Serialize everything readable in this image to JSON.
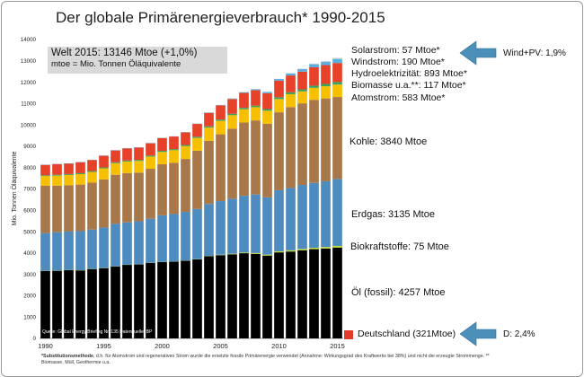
{
  "title": "Der globale Primärenergieverbrauch* 1990-2015",
  "ylabel": "Mio. Tonnen Öläquivalente",
  "summary_box": {
    "line1": "Welt 2015: 13146 Mtoe (+1,0%)",
    "line2": "mtoe = Mio. Tonnen Öläquivalente"
  },
  "source_label": "Quelle: Global Energy Briefing Nr. 135 Datenquelle: BP",
  "footnote": {
    "bold": "*Substitutionsmethode",
    "text": ", d.h. für Atomstrom und regenerativen Strom wurde die ersetzte fossile Primärenergie verwendet (Annahme: Wirkungsgrad des Kraftwerks bei 38%) und nicht die erzeugte Strommenge. ** Biomasse, Müll, Geothermie u.a."
  },
  "annotations": {
    "wind_pv": "Wind+PV: 1,9%",
    "germany_share": "D: 2,4%"
  },
  "colors": {
    "oel": "#000000",
    "biokraft": "#c4dc3a",
    "erdgas": "#4e8cc0",
    "kohle": "#a9784a",
    "atom": "#f6c000",
    "biomasse": "#3ba25a",
    "hydro": "#e8412a",
    "wind": "#58b0e0",
    "solar": "#d7d7d7",
    "deutschland": "#e33b2b",
    "arrow": "#4a90b8"
  },
  "chart_data": {
    "type": "bar",
    "stacked": true,
    "title": "Der globale Primärenergieverbrauch* 1990-2015",
    "ylabel": "Mio. Tonnen Öläquivalente",
    "ylim": [
      0,
      14000
    ],
    "yticks": [
      0,
      1000,
      2000,
      3000,
      4000,
      5000,
      6000,
      7000,
      8000,
      9000,
      10000,
      11000,
      12000,
      13000,
      14000
    ],
    "categories": [
      1990,
      1991,
      1992,
      1993,
      1994,
      1995,
      1996,
      1997,
      1998,
      1999,
      2000,
      2001,
      2002,
      2003,
      2004,
      2005,
      2006,
      2007,
      2008,
      2009,
      2010,
      2011,
      2012,
      2013,
      2014,
      2015
    ],
    "xtick_labels": [
      "1990",
      "1995",
      "2000",
      "2005",
      "2010",
      "2015"
    ],
    "series": [
      {
        "name": "Öl (fossil): 4257 Mtoe",
        "key": "oel",
        "values": [
          3160,
          3170,
          3200,
          3190,
          3250,
          3290,
          3370,
          3450,
          3470,
          3540,
          3580,
          3600,
          3640,
          3700,
          3850,
          3900,
          3940,
          3990,
          3960,
          3880,
          4030,
          4070,
          4130,
          4180,
          4210,
          4257
        ]
      },
      {
        "name": "Biokraftstoffe: 75 Mtoe",
        "key": "biokraft",
        "values": [
          5,
          5,
          5,
          5,
          5,
          5,
          5,
          5,
          5,
          5,
          5,
          5,
          5,
          10,
          15,
          20,
          25,
          30,
          40,
          45,
          50,
          55,
          60,
          65,
          70,
          75
        ]
      },
      {
        "name": "Erdgas: 3135 Mtoe",
        "key": "erdgas",
        "values": [
          1770,
          1800,
          1800,
          1830,
          1840,
          1900,
          1990,
          1980,
          2010,
          2060,
          2180,
          2220,
          2280,
          2350,
          2430,
          2510,
          2580,
          2660,
          2740,
          2680,
          2860,
          2920,
          3000,
          3040,
          3080,
          3135
        ]
      },
      {
        "name": "Kohle: 3840 Mtoe",
        "key": "kohle",
        "values": [
          2220,
          2180,
          2170,
          2180,
          2200,
          2250,
          2300,
          2310,
          2280,
          2340,
          2390,
          2400,
          2480,
          2730,
          2960,
          3130,
          3280,
          3430,
          3470,
          3450,
          3650,
          3790,
          3820,
          3890,
          3880,
          3840
        ]
      },
      {
        "name": "Atomstrom: 583 Mtoe*",
        "key": "atom",
        "values": [
          450,
          470,
          480,
          490,
          500,
          520,
          540,
          540,
          550,
          570,
          580,
          590,
          600,
          600,
          620,
          630,
          630,
          620,
          620,
          610,
          620,
          600,
          560,
          560,
          570,
          583
        ]
      },
      {
        "name": "Biomasse u.a.**: 117 Mtoe*",
        "key": "biomasse",
        "values": [
          40,
          41,
          42,
          43,
          44,
          45,
          46,
          47,
          48,
          50,
          51,
          52,
          54,
          56,
          58,
          61,
          64,
          68,
          73,
          78,
          84,
          90,
          96,
          103,
          110,
          117
        ]
      },
      {
        "name": "Hydroelektrizität: 893 Mtoe*",
        "key": "hydro",
        "values": [
          490,
          500,
          500,
          520,
          520,
          550,
          560,
          570,
          580,
          580,
          600,
          590,
          590,
          600,
          630,
          660,
          690,
          700,
          720,
          740,
          780,
          790,
          830,
          860,
          880,
          893
        ]
      },
      {
        "name": "Windstrom: 190 Mtoe*",
        "key": "wind",
        "values": [
          1,
          1,
          1,
          1,
          1,
          2,
          2,
          3,
          4,
          5,
          7,
          9,
          12,
          15,
          20,
          24,
          30,
          38,
          50,
          63,
          78,
          99,
          118,
          144,
          160,
          190
        ]
      },
      {
        "name": "Solarstrom: 57 Mtoe*",
        "key": "solar",
        "values": [
          0,
          0,
          0,
          0,
          0,
          0,
          0,
          0,
          0,
          0,
          0,
          0,
          0,
          0,
          1,
          1,
          1,
          2,
          3,
          5,
          8,
          14,
          23,
          30,
          41,
          57
        ]
      }
    ],
    "series_labels": {
      "oel": "Öl (fossil): 4257 Mtoe",
      "biokraft": "Biokraftstoffe: 75 Mtoe",
      "erdgas": "Erdgas: 3135 Mtoe",
      "kohle": "Kohle: 3840 Mtoe",
      "atom": "Atomstrom: 583 Mtoe*",
      "biomasse": "Biomasse u.a.**: 117 Mtoe*",
      "hydro": "Hydroelektrizität: 893 Mtoe*",
      "wind": "Windstrom: 190 Mtoe*",
      "solar": "Solarstrom: 57 Mtoe*"
    },
    "legend_item": {
      "label": "Deutschland (321Mtoe)",
      "key": "deutschland"
    }
  }
}
